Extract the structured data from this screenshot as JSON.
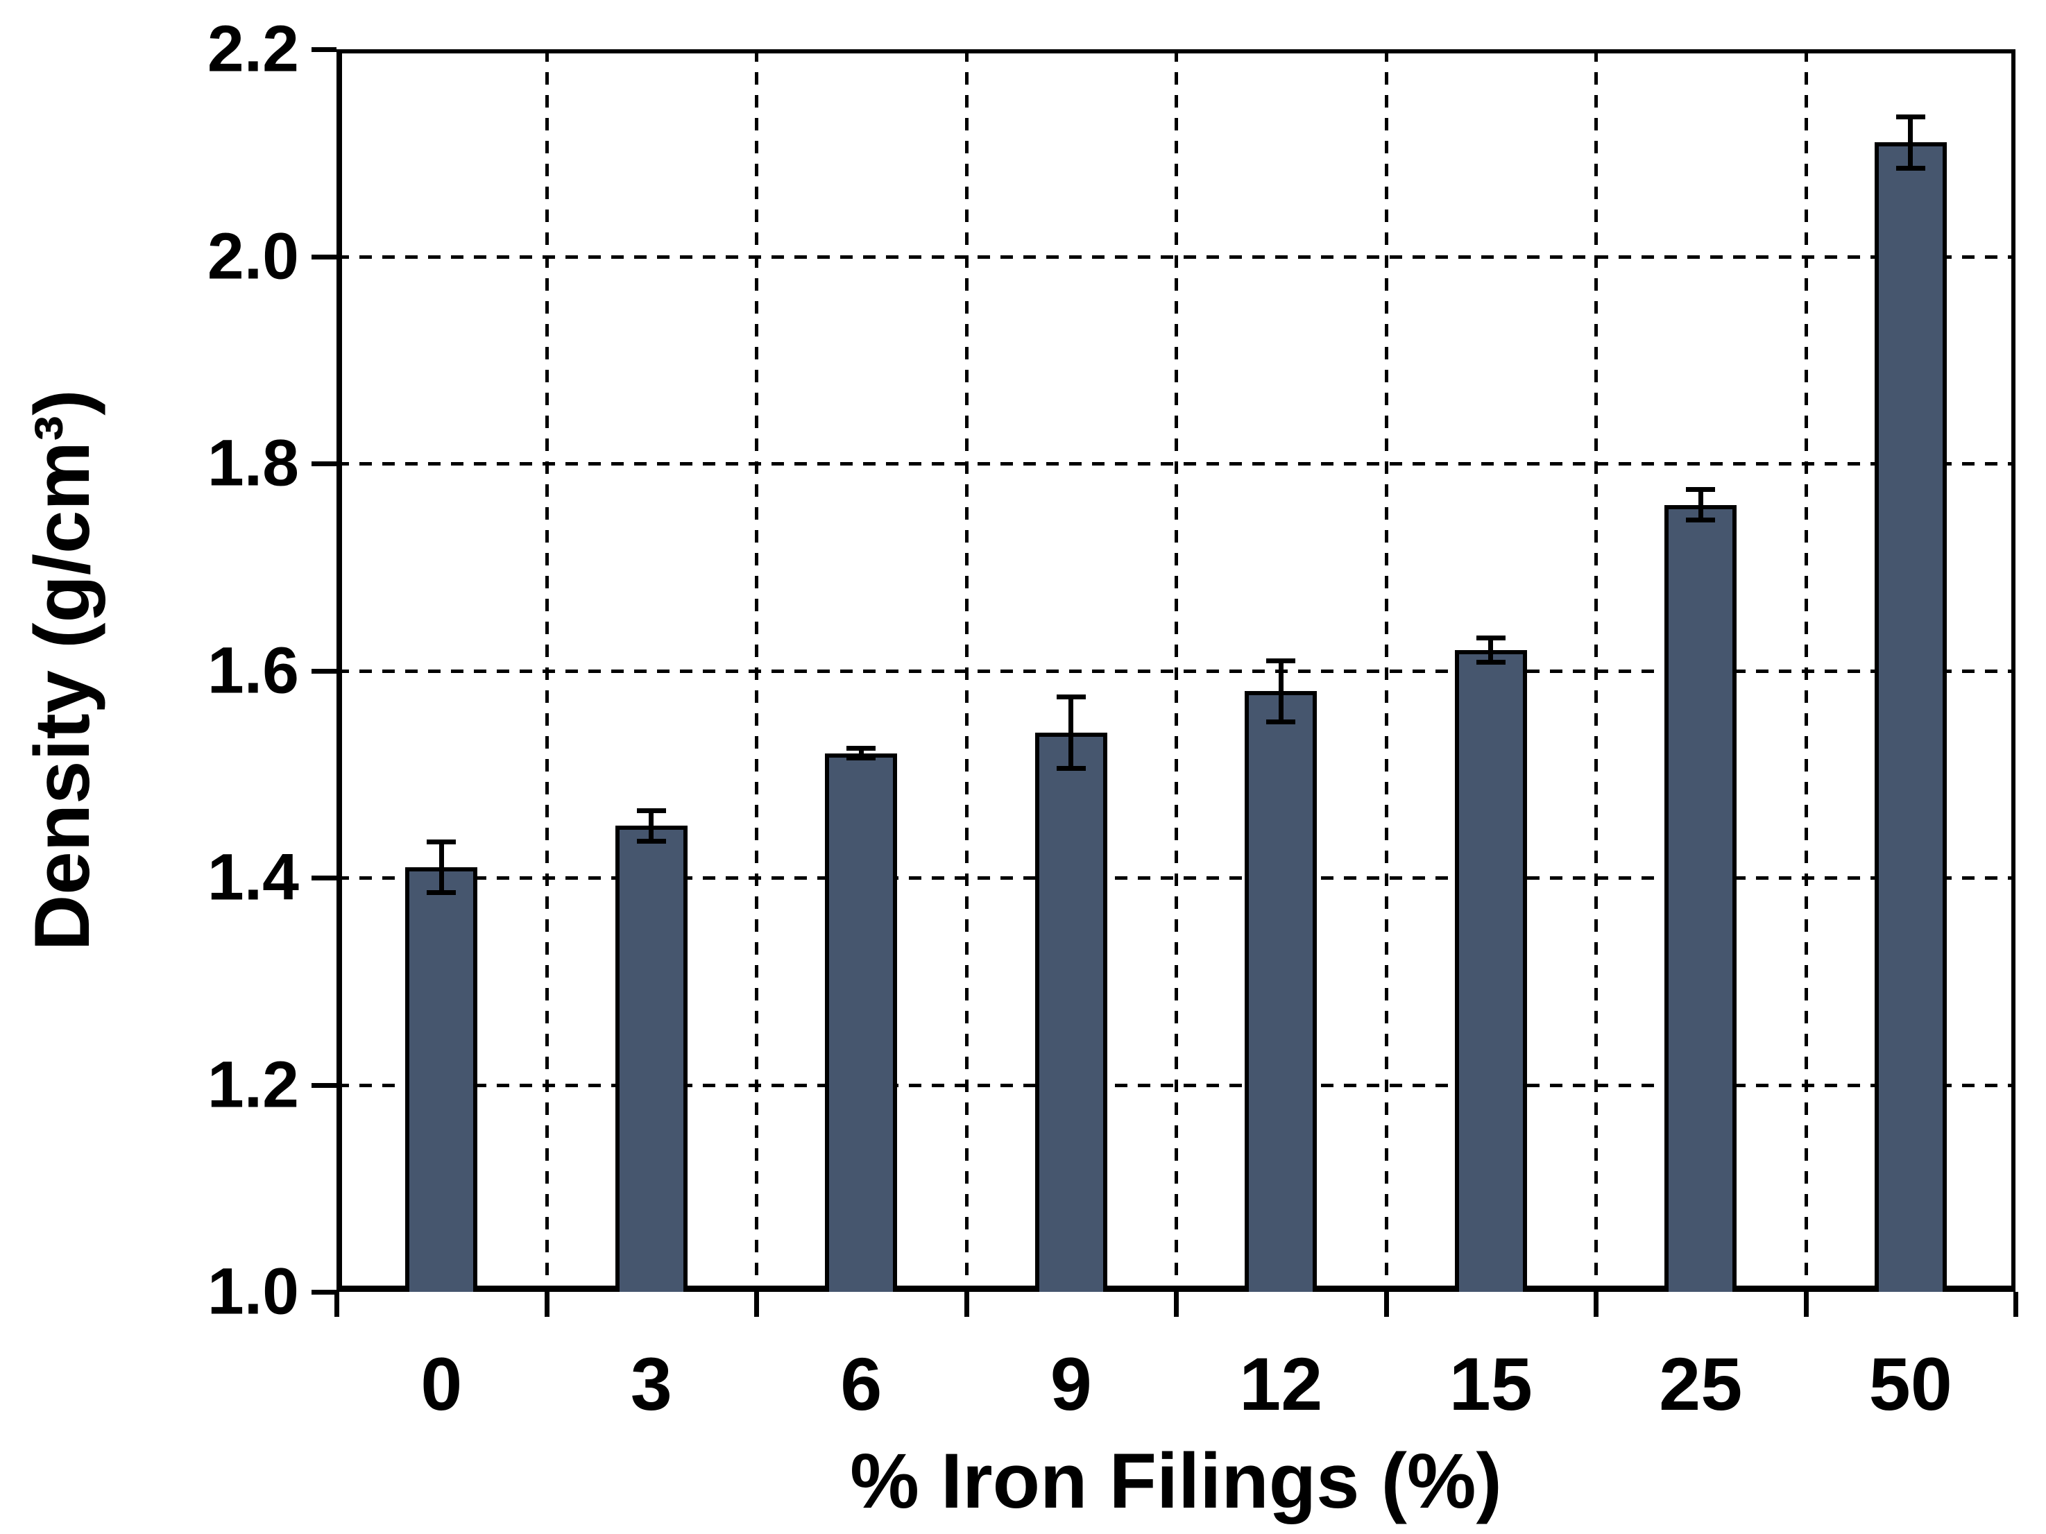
{
  "chart_data": {
    "type": "bar",
    "title": "",
    "xlabel": "% Iron Filings (%)",
    "ylabel": "Density (g/cm³)",
    "categories": [
      "0",
      "3",
      "6",
      "9",
      "12",
      "15",
      "25",
      "50"
    ],
    "series": [
      {
        "name": "Density",
        "values": [
          1.41,
          1.45,
          1.52,
          1.54,
          1.58,
          1.62,
          1.76,
          2.11
        ],
        "errors": [
          0.025,
          0.015,
          0.005,
          0.035,
          0.03,
          0.012,
          0.015,
          0.025
        ]
      }
    ],
    "ylim": [
      1.0,
      2.2
    ],
    "ytick_labels": [
      "1.0",
      "1.2",
      "1.4",
      "1.6",
      "1.8",
      "2.0",
      "2.2"
    ],
    "grid": {
      "horizontal": true,
      "vertical": true,
      "style": "dashed"
    },
    "legend_position": "none",
    "error_bars": "both directions, capped",
    "colors": {
      "bar_fill": "#46566E",
      "bar_border": "#000000",
      "axis": "#000000",
      "grid": "#000000",
      "text": "#000000",
      "background": "#FFFFFF"
    }
  }
}
